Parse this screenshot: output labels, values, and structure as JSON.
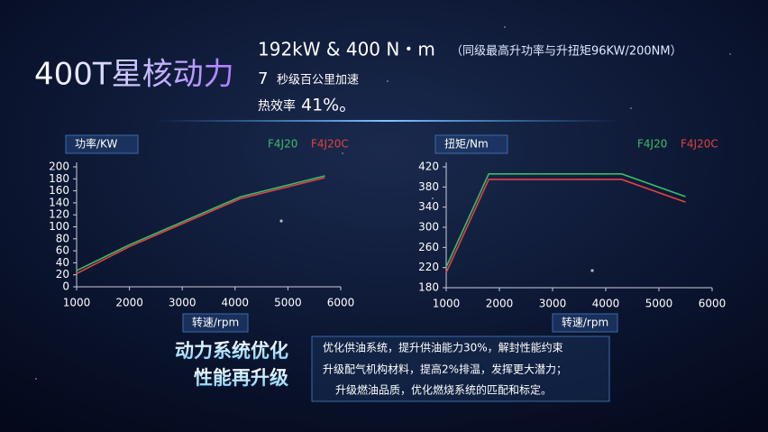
{
  "header": {
    "title": "400T星核动力",
    "spec_main": "192kW & 400 N・m",
    "spec_note": "（同级最高升功率与升扭矩96KW/200NM）",
    "accel_num": "7",
    "accel_text": "秒级百公里加速",
    "eff_text": "热效率",
    "eff_num": "41%。"
  },
  "chart_data": [
    {
      "type": "line",
      "y_label": "功率/KW",
      "x_label": "转速/rpm",
      "x": [
        1000,
        2000,
        4100,
        5700
      ],
      "series": [
        {
          "name": "F4J20",
          "color": "#3dbb6a",
          "values": [
            27,
            70,
            150,
            185
          ]
        },
        {
          "name": "F4J20C",
          "color": "#e0433f",
          "values": [
            22,
            67,
            147,
            182
          ]
        }
      ],
      "xlim": [
        1000,
        6000
      ],
      "xticks": [
        1000,
        2000,
        3000,
        4000,
        5000,
        6000
      ],
      "ylim": [
        0,
        200
      ],
      "yticks": [
        0,
        20,
        40,
        60,
        80,
        100,
        120,
        140,
        160,
        180,
        200
      ],
      "grid": false
    },
    {
      "type": "line",
      "y_label": "扭矩/Nm",
      "x_label": "转速/rpm",
      "x": [
        1000,
        1800,
        4300,
        5500
      ],
      "series": [
        {
          "name": "F4J20",
          "color": "#3dbb6a",
          "values": [
            221,
            406,
            406,
            361
          ]
        },
        {
          "name": "F4J20C",
          "color": "#e0433f",
          "values": [
            210,
            395,
            395,
            350
          ]
        }
      ],
      "xlim": [
        1000,
        6000
      ],
      "xticks": [
        1000,
        2000,
        3000,
        4000,
        5000,
        6000
      ],
      "ylim": [
        180,
        420
      ],
      "yticks": [
        180,
        220,
        260,
        300,
        340,
        380,
        420
      ],
      "grid": false
    }
  ],
  "footer": {
    "heading": [
      "动力系统优化",
      "性能再升级"
    ],
    "points": [
      "优化供油系统，提升供油能力30%，解封性能约束",
      "升级配气机构材料，提高2%排温，发挥更大潜力；",
      "升级燃油品质，优化燃烧系统的匹配和标定。"
    ]
  }
}
